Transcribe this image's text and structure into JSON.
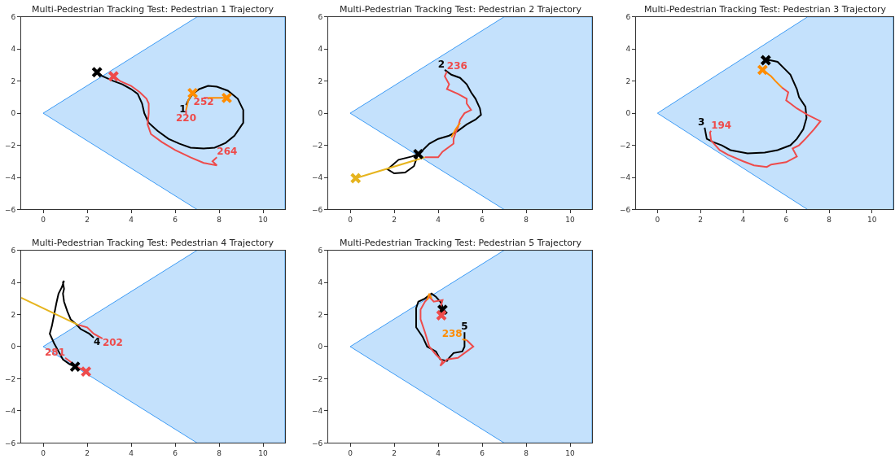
{
  "chart_data": [
    {
      "type": "line",
      "title": "Multi-Pedestrian Tracking Test: Pedestrian 1 Trajectory",
      "xlim": [
        -1,
        11
      ],
      "ylim": [
        -6,
        6
      ],
      "xticks": [
        0,
        2,
        4,
        6,
        8,
        10
      ],
      "yticks": [
        -6,
        -4,
        -2,
        0,
        2,
        4,
        6
      ],
      "series": [
        {
          "type": "area",
          "color": "#3d9bf5",
          "x": [
            0,
            7,
            11,
            11,
            7,
            0
          ],
          "values": [
            0,
            6,
            6,
            -6,
            -6,
            0
          ]
        },
        {
          "name": "1",
          "color": "#000000",
          "x": [
            6.5,
            6.6,
            6.8,
            7.1,
            7.5,
            7.9,
            8.4,
            8.85,
            9.1,
            9.1,
            8.7,
            8.3,
            7.8,
            7.3,
            6.7,
            6.2,
            5.7,
            5.2,
            4.8,
            4.6,
            4.5,
            4.3,
            4.0,
            3.6,
            3.2,
            2.7,
            2.45
          ],
          "values": [
            0.5,
            0.8,
            1.2,
            1.5,
            1.7,
            1.65,
            1.4,
            0.9,
            0.2,
            -0.6,
            -1.4,
            -1.85,
            -2.15,
            -2.2,
            -2.15,
            -1.9,
            -1.6,
            -1.1,
            -0.6,
            0.0,
            0.6,
            1.2,
            1.5,
            1.8,
            2.0,
            2.3,
            2.55
          ]
        },
        {
          "name": "264",
          "color": "#ee4b4b",
          "x": [
            7.9,
            7.7,
            7.9,
            7.3,
            6.7,
            6.0,
            5.4,
            4.9,
            4.75,
            4.8,
            4.8,
            4.7,
            4.4,
            4.0,
            3.5,
            3.2
          ],
          "values": [
            -2.75,
            -3.0,
            -3.25,
            -3.1,
            -2.75,
            -2.3,
            -1.8,
            -1.3,
            -0.7,
            0.0,
            0.6,
            0.9,
            1.3,
            1.7,
            2.0,
            2.3
          ]
        },
        {
          "name": "220",
          "color": "#ee4b4b",
          "x": [
            6.5,
            6.5
          ],
          "values": [
            -0.05,
            0.2
          ]
        },
        {
          "color": "#ff8c00",
          "x": [
            6.5,
            6.6,
            6.8
          ],
          "values": [
            0.2,
            0.8,
            1.25
          ]
        },
        {
          "name": "252",
          "color": "#ee4b4b",
          "x": [
            7.3,
            7.5
          ],
          "values": [
            0.95,
            0.95
          ]
        },
        {
          "color": "#ff8c00",
          "x": [
            7.5,
            8.35
          ],
          "values": [
            0.95,
            0.95
          ]
        },
        {
          "type": "scatter",
          "marker": "cross",
          "color": "#000000",
          "x": [
            2.45
          ],
          "values": [
            2.55
          ]
        },
        {
          "type": "scatter",
          "marker": "cross",
          "color": "#ee4b4b",
          "x": [
            3.2
          ],
          "values": [
            2.3
          ]
        },
        {
          "type": "scatter",
          "marker": "cross",
          "color": "#ff8c00",
          "x": [
            6.8,
            8.35
          ],
          "values": [
            1.25,
            0.95
          ]
        }
      ]
    },
    {
      "type": "line",
      "title": "Multi-Pedestrian Tracking Test: Pedestrian 2 Trajectory",
      "xlim": [
        -1,
        11
      ],
      "ylim": [
        -6,
        6
      ],
      "xticks": [
        0,
        2,
        4,
        6,
        8,
        10
      ],
      "yticks": [
        -6,
        -4,
        -2,
        0,
        2,
        4,
        6
      ],
      "series": [
        {
          "type": "area",
          "color": "#3d9bf5",
          "x": [
            0,
            7,
            11,
            11,
            7,
            0
          ],
          "values": [
            0,
            6,
            6,
            -6,
            -6,
            0
          ]
        },
        {
          "name": "2",
          "color": "#000000",
          "x": [
            4.3,
            4.6,
            5.0,
            5.3,
            5.5,
            5.7,
            5.9,
            5.95,
            5.7,
            5.3,
            4.9,
            4.5,
            4.0,
            3.6,
            3.3,
            3.1,
            2.8,
            2.2,
            1.7,
            2.0,
            2.5,
            2.9,
            3.1
          ],
          "values": [
            2.7,
            2.4,
            2.2,
            1.8,
            1.3,
            0.9,
            0.3,
            -0.1,
            -0.4,
            -0.7,
            -1.1,
            -1.4,
            -1.6,
            -1.9,
            -2.3,
            -2.55,
            -2.7,
            -2.9,
            -3.5,
            -3.75,
            -3.7,
            -3.3,
            -2.5
          ]
        },
        {
          "name": "236",
          "color": "#ee4b4b",
          "x": [
            4.4,
            4.3,
            4.5,
            4.4,
            4.9,
            5.3,
            5.3,
            5.5,
            5.2,
            5.0,
            4.9,
            4.8,
            4.7,
            4.7,
            4.2,
            4.0,
            3.4
          ],
          "values": [
            2.6,
            2.3,
            1.8,
            1.5,
            1.2,
            0.9,
            0.6,
            0.2,
            0.0,
            -0.4,
            -0.9,
            -1.2,
            -1.6,
            -1.9,
            -2.4,
            -2.75,
            -2.75
          ]
        },
        {
          "color": "#ff8c00",
          "x": [
            4.6,
            4.8,
            5.0
          ],
          "values": [
            -1.5,
            -1.0,
            -0.6
          ]
        },
        {
          "color": "#e6b41e",
          "x": [
            3.4,
            0.25
          ],
          "values": [
            -2.75,
            -4.05
          ]
        },
        {
          "type": "scatter",
          "marker": "cross",
          "color": "#000000",
          "x": [
            3.1
          ],
          "values": [
            -2.55
          ]
        },
        {
          "type": "scatter",
          "marker": "cross",
          "color": "#e6b41e",
          "x": [
            0.25
          ],
          "values": [
            -4.05
          ]
        }
      ]
    },
    {
      "type": "line",
      "title": "Multi-Pedestrian Tracking Test: Pedestrian 3 Trajectory",
      "xlim": [
        -1,
        11
      ],
      "ylim": [
        -6,
        6
      ],
      "xticks": [
        0,
        2,
        4,
        6,
        8,
        10
      ],
      "yticks": [
        -6,
        -4,
        -2,
        0,
        2,
        4,
        6
      ],
      "series": [
        {
          "type": "area",
          "color": "#3d9bf5",
          "x": [
            0,
            7,
            11,
            11,
            7,
            0
          ],
          "values": [
            0,
            6,
            6,
            -6,
            -6,
            0
          ]
        },
        {
          "name": "3",
          "color": "#000000",
          "x": [
            2.2,
            2.3,
            2.6,
            3.0,
            3.4,
            4.2,
            5.0,
            5.6,
            6.2,
            6.5,
            6.8,
            6.95,
            6.9,
            6.6,
            6.5,
            6.2,
            5.9,
            5.6,
            5.25,
            5.05
          ],
          "values": [
            -0.9,
            -1.6,
            -1.8,
            -2.0,
            -2.3,
            -2.5,
            -2.45,
            -2.3,
            -2.0,
            -1.6,
            -1.0,
            -0.3,
            0.4,
            1.0,
            1.5,
            2.4,
            2.8,
            3.2,
            3.3,
            3.3
          ]
        },
        {
          "name": "194",
          "color": "#ee4b4b",
          "x": [
            2.5,
            2.45,
            2.5,
            2.9,
            3.3,
            4.0,
            4.5,
            5.1,
            5.3,
            6.0,
            6.5,
            6.3,
            6.6,
            6.9,
            7.3,
            7.6,
            7.0,
            6.5,
            6.2,
            6.0,
            6.1,
            5.8
          ],
          "values": [
            -1.1,
            -1.2,
            -1.7,
            -2.3,
            -2.6,
            -3.0,
            -3.25,
            -3.35,
            -3.2,
            -3.05,
            -2.7,
            -2.2,
            -2.0,
            -1.6,
            -1.0,
            -0.5,
            -0.1,
            0.3,
            0.6,
            0.8,
            1.3,
            1.6
          ]
        },
        {
          "color": "#ff8c00",
          "x": [
            5.8,
            5.5,
            5.3,
            4.9
          ],
          "values": [
            1.6,
            2.0,
            2.3,
            2.7
          ]
        },
        {
          "type": "scatter",
          "marker": "cross",
          "color": "#000000",
          "x": [
            5.05
          ],
          "values": [
            3.3
          ]
        },
        {
          "type": "scatter",
          "marker": "cross",
          "color": "#ff8c00",
          "x": [
            4.9
          ],
          "values": [
            2.7
          ]
        }
      ]
    },
    {
      "type": "line",
      "title": "Multi-Pedestrian Tracking Test: Pedestrian 4 Trajectory",
      "xlim": [
        -1,
        11
      ],
      "ylim": [
        -6,
        6
      ],
      "xticks": [
        0,
        2,
        4,
        6,
        8,
        10
      ],
      "yticks": [
        -6,
        -4,
        -2,
        0,
        2,
        4,
        6
      ],
      "series": [
        {
          "type": "area",
          "color": "#3d9bf5",
          "x": [
            0,
            7,
            11,
            11,
            7,
            0
          ],
          "values": [
            0,
            6,
            6,
            -6,
            -6,
            0
          ]
        },
        {
          "name": "4",
          "color": "#000000",
          "x": [
            2.3,
            2.1,
            1.7,
            1.5,
            1.25,
            1.1,
            0.95,
            0.9,
            0.95,
            0.9,
            0.95,
            0.85,
            0.7,
            0.6,
            0.5,
            0.4,
            0.3,
            0.5,
            0.7,
            0.9,
            1.2,
            1.45
          ],
          "values": [
            0.55,
            0.8,
            1.1,
            1.4,
            1.7,
            2.2,
            2.8,
            3.3,
            3.6,
            4.0,
            4.1,
            3.7,
            3.3,
            2.7,
            2.0,
            1.3,
            0.8,
            0.2,
            -0.3,
            -0.8,
            -1.1,
            -1.25
          ]
        },
        {
          "name": "202",
          "color": "#ee4b4b",
          "x": [
            2.7,
            2.3,
            2.0,
            1.6
          ],
          "values": [
            0.5,
            0.8,
            1.2,
            1.35
          ]
        },
        {
          "color": "#e6b41e",
          "x": [
            1.6,
            -1.0
          ],
          "values": [
            1.35,
            3.05
          ]
        },
        {
          "name": "281",
          "color": "#ee4b4b",
          "x": [
            1.0,
            1.3,
            1.6,
            1.95
          ],
          "values": [
            -0.7,
            -1.0,
            -1.3,
            -1.55
          ]
        },
        {
          "type": "scatter",
          "marker": "cross",
          "color": "#000000",
          "x": [
            1.45
          ],
          "values": [
            -1.25
          ]
        },
        {
          "type": "scatter",
          "marker": "cross",
          "color": "#ee4b4b",
          "x": [
            1.95
          ],
          "values": [
            -1.55
          ]
        }
      ]
    },
    {
      "type": "line",
      "title": "Multi-Pedestrian Tracking Test: Pedestrian 5 Trajectory",
      "xlim": [
        -1,
        11
      ],
      "ylim": [
        -6,
        6
      ],
      "xticks": [
        0,
        2,
        4,
        6,
        8,
        10
      ],
      "yticks": [
        -6,
        -4,
        -2,
        0,
        2,
        4,
        6
      ],
      "series": [
        {
          "type": "area",
          "color": "#3d9bf5",
          "x": [
            0,
            7,
            11,
            11,
            7,
            0
          ],
          "values": [
            0,
            6,
            6,
            -6,
            -6,
            0
          ]
        },
        {
          "name": "5",
          "color": "#000000",
          "x": [
            5.2,
            5.2,
            5.1,
            4.7,
            4.5,
            4.4,
            4.1,
            3.9,
            3.5,
            3.3,
            3.0,
            3.0,
            3.0,
            3.1,
            3.4,
            3.7,
            3.9,
            4.1,
            4.2,
            4.2
          ],
          "values": [
            0.9,
            0.0,
            -0.3,
            -0.4,
            -0.7,
            -0.9,
            -0.8,
            -0.3,
            0.0,
            0.6,
            1.2,
            1.9,
            2.4,
            2.8,
            3.0,
            3.3,
            3.1,
            2.8,
            2.5,
            2.3
          ]
        },
        {
          "name": "238",
          "color": "#ff8c00",
          "x": [
            5.1,
            5.3
          ],
          "values": [
            0.45,
            0.4
          ]
        },
        {
          "color": "#ee4b4b",
          "x": [
            5.3,
            5.6,
            5.3,
            4.9,
            4.4,
            4.1,
            4.2,
            3.9,
            3.6,
            3.4,
            3.2,
            3.2,
            3.4,
            3.6,
            3.8,
            4.2,
            4.1,
            4.15
          ],
          "values": [
            0.4,
            0.0,
            -0.3,
            -0.7,
            -0.8,
            -1.2,
            -0.9,
            -0.5,
            0.0,
            0.9,
            1.7,
            2.3,
            2.8,
            3.1,
            2.8,
            2.9,
            2.4,
            2.0
          ]
        },
        {
          "color": "#ff8c00",
          "x": [
            3.5,
            3.6,
            3.7
          ],
          "values": [
            2.9,
            3.3,
            3.0
          ]
        },
        {
          "type": "scatter",
          "marker": "cross",
          "color": "#000000",
          "x": [
            4.2
          ],
          "values": [
            2.3
          ]
        },
        {
          "type": "scatter",
          "marker": "cross",
          "color": "#ee4b4b",
          "x": [
            4.15
          ],
          "values": [
            1.95
          ]
        }
      ]
    }
  ]
}
